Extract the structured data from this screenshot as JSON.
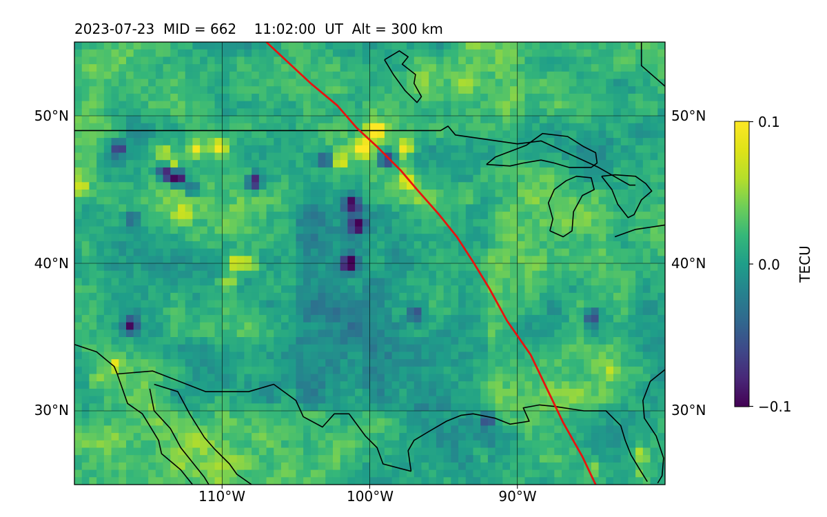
{
  "chart_data": {
    "type": "heatmap",
    "title": "2023-07-23  MID = 662    11:02:00  UT  Alt = 300 km",
    "lon_range": [
      -120,
      -80
    ],
    "lat_range": [
      25,
      55
    ],
    "x_ticks": [
      {
        "value": -110,
        "label": "110°W"
      },
      {
        "value": -100,
        "label": "100°W"
      },
      {
        "value": -90,
        "label": "90°W"
      }
    ],
    "y_ticks": [
      {
        "value": 50,
        "label": "50°N"
      },
      {
        "value": 40,
        "label": "40°N"
      },
      {
        "value": 30,
        "label": "30°N"
      }
    ],
    "grid": true,
    "colormap": "viridis",
    "colorbar": {
      "label": "TECU",
      "range": [
        -0.1,
        0.1
      ],
      "ticks": [
        {
          "value": 0.1,
          "label": "0.1"
        },
        {
          "value": 0.0,
          "label": "0.0"
        },
        {
          "value": -0.1,
          "label": "−0.1"
        }
      ]
    },
    "field": {
      "grid_resolution_deg": 0.5,
      "background_value": 0.015,
      "hotspots": [
        {
          "lon": -100.4,
          "lat": 47.8,
          "value": 0.11
        },
        {
          "lon": -99.6,
          "lat": 49.0,
          "value": 0.11
        },
        {
          "lon": -97.6,
          "lat": 47.8,
          "value": 0.11
        },
        {
          "lon": -97.4,
          "lat": 45.6,
          "value": 0.09
        },
        {
          "lon": -111.8,
          "lat": 47.8,
          "value": 0.09
        },
        {
          "lon": -110.2,
          "lat": 47.8,
          "value": 0.1
        },
        {
          "lon": -113.4,
          "lat": 46.6,
          "value": 0.08
        },
        {
          "lon": -109.2,
          "lat": 40.0,
          "value": 0.1
        },
        {
          "lon": -108.2,
          "lat": 40.0,
          "value": 0.09
        },
        {
          "lon": -109.6,
          "lat": 38.8,
          "value": 0.07
        },
        {
          "lon": -102.0,
          "lat": 47.0,
          "value": 0.08
        },
        {
          "lon": -119.6,
          "lat": 45.2,
          "value": 0.07
        },
        {
          "lon": -117.2,
          "lat": 33.2,
          "value": 0.07
        },
        {
          "lon": -118.6,
          "lat": 32.2,
          "value": 0.06
        },
        {
          "lon": -112.6,
          "lat": 43.4,
          "value": 0.06
        },
        {
          "lon": -114.0,
          "lat": 47.6,
          "value": 0.06
        },
        {
          "lon": -84.8,
          "lat": 26.2,
          "value": 0.07
        },
        {
          "lon": -83.6,
          "lat": 32.8,
          "value": 0.05
        },
        {
          "lon": -81.6,
          "lat": 25.6,
          "value": 0.06
        },
        {
          "lon": -81.6,
          "lat": 27.0,
          "value": 0.07
        },
        {
          "lon": -92.4,
          "lat": 27.0,
          "value": 0.05
        }
      ],
      "coldspots": [
        {
          "lon": -113.8,
          "lat": 46.2,
          "value": -0.1
        },
        {
          "lon": -113.0,
          "lat": 45.8,
          "value": -0.1
        },
        {
          "lon": -107.8,
          "lat": 45.5,
          "value": -0.1
        },
        {
          "lon": -101.2,
          "lat": 44.0,
          "value": -0.09
        },
        {
          "lon": -100.8,
          "lat": 42.6,
          "value": -0.1
        },
        {
          "lon": -101.4,
          "lat": 40.0,
          "value": -0.09
        },
        {
          "lon": -116.2,
          "lat": 35.8,
          "value": -0.1
        },
        {
          "lon": -98.9,
          "lat": 47.0,
          "value": -0.08
        },
        {
          "lon": -103.0,
          "lat": 47.0,
          "value": -0.07
        },
        {
          "lon": -117.0,
          "lat": 47.8,
          "value": -0.06
        },
        {
          "lon": -112.0,
          "lat": 45.0,
          "value": -0.06
        },
        {
          "lon": -116.0,
          "lat": 43.0,
          "value": -0.05
        },
        {
          "lon": -96.8,
          "lat": 36.6,
          "value": -0.06
        },
        {
          "lon": -92.0,
          "lat": 29.4,
          "value": -0.06
        },
        {
          "lon": -85.0,
          "lat": 36.4,
          "value": -0.05
        }
      ]
    },
    "track": {
      "color": "#e8130f",
      "points": [
        [
          -107.0,
          55.0
        ],
        [
          -105.5,
          53.6
        ],
        [
          -104.0,
          52.2
        ],
        [
          -102.2,
          50.7
        ],
        [
          -100.9,
          49.2
        ],
        [
          -99.5,
          47.9
        ],
        [
          -97.9,
          46.3
        ],
        [
          -96.8,
          45.0
        ],
        [
          -95.3,
          43.3
        ],
        [
          -94.1,
          41.8
        ],
        [
          -93.0,
          40.1
        ],
        [
          -91.9,
          38.3
        ],
        [
          -90.7,
          36.1
        ],
        [
          -89.1,
          33.8
        ],
        [
          -88.0,
          31.5
        ],
        [
          -86.9,
          29.2
        ],
        [
          -85.6,
          26.9
        ],
        [
          -84.7,
          25.0
        ]
      ]
    },
    "coastlines": [
      {
        "name": "us-canada-border",
        "points": [
          [
            -120.0,
            49.0
          ],
          [
            -95.2,
            49.0
          ],
          [
            -94.7,
            49.3
          ],
          [
            -94.2,
            48.7
          ],
          [
            -90.0,
            48.1
          ],
          [
            -88.4,
            48.3
          ],
          [
            -84.5,
            46.5
          ],
          [
            -82.4,
            45.3
          ],
          [
            -82.0,
            45.3
          ]
        ]
      },
      {
        "name": "lake-superior",
        "points": [
          [
            -92.1,
            46.7
          ],
          [
            -90.5,
            46.6
          ],
          [
            -89.6,
            46.8
          ],
          [
            -88.4,
            47.0
          ],
          [
            -87.5,
            46.8
          ],
          [
            -86.5,
            46.5
          ],
          [
            -85.0,
            46.5
          ],
          [
            -84.6,
            46.8
          ],
          [
            -84.7,
            47.5
          ],
          [
            -85.5,
            47.9
          ],
          [
            -86.6,
            48.6
          ],
          [
            -88.3,
            48.8
          ],
          [
            -89.4,
            48.0
          ],
          [
            -91.5,
            47.2
          ],
          [
            -92.1,
            46.7
          ]
        ]
      },
      {
        "name": "lake-michigan",
        "points": [
          [
            -87.8,
            42.2
          ],
          [
            -87.6,
            43.0
          ],
          [
            -87.9,
            44.1
          ],
          [
            -87.5,
            45.0
          ],
          [
            -86.7,
            45.6
          ],
          [
            -86.0,
            45.9
          ],
          [
            -85.0,
            45.8
          ],
          [
            -84.8,
            45.0
          ],
          [
            -85.6,
            44.6
          ],
          [
            -86.2,
            43.5
          ],
          [
            -86.3,
            42.2
          ],
          [
            -86.9,
            41.8
          ],
          [
            -87.8,
            42.2
          ]
        ]
      },
      {
        "name": "lake-huron",
        "points": [
          [
            -84.3,
            45.9
          ],
          [
            -83.4,
            46.0
          ],
          [
            -82.0,
            45.9
          ],
          [
            -81.3,
            45.4
          ],
          [
            -80.9,
            44.9
          ],
          [
            -81.6,
            44.3
          ],
          [
            -82.1,
            43.3
          ],
          [
            -82.5,
            43.1
          ],
          [
            -83.2,
            44.0
          ],
          [
            -83.6,
            45.0
          ],
          [
            -84.3,
            45.9
          ]
        ]
      },
      {
        "name": "lake-erie-ontario",
        "points": [
          [
            -83.4,
            41.8
          ],
          [
            -82.0,
            42.3
          ],
          [
            -80.0,
            42.6
          ]
        ]
      },
      {
        "name": "hudson-bay-shore",
        "points": [
          [
            -81.6,
            55.0
          ],
          [
            -81.6,
            53.4
          ],
          [
            -80.0,
            52.0
          ]
        ]
      },
      {
        "name": "lake-winnipeg",
        "points": [
          [
            -99.0,
            53.8
          ],
          [
            -98.0,
            54.4
          ],
          [
            -97.4,
            54.0
          ],
          [
            -97.8,
            53.5
          ],
          [
            -96.9,
            52.8
          ],
          [
            -97.0,
            52.2
          ],
          [
            -96.5,
            51.3
          ],
          [
            -96.8,
            50.9
          ],
          [
            -97.6,
            51.7
          ],
          [
            -98.4,
            52.8
          ],
          [
            -99.0,
            53.8
          ]
        ]
      },
      {
        "name": "gulf-coast",
        "points": [
          [
            -97.2,
            25.9
          ],
          [
            -97.4,
            27.3
          ],
          [
            -97.0,
            28.0
          ],
          [
            -96.0,
            28.6
          ],
          [
            -94.8,
            29.3
          ],
          [
            -93.8,
            29.7
          ],
          [
            -93.0,
            29.8
          ],
          [
            -91.5,
            29.5
          ],
          [
            -90.5,
            29.1
          ],
          [
            -89.2,
            29.3
          ],
          [
            -89.6,
            30.2
          ],
          [
            -88.5,
            30.4
          ],
          [
            -87.5,
            30.3
          ],
          [
            -85.5,
            30.0
          ],
          [
            -84.0,
            30.0
          ],
          [
            -83.0,
            29.0
          ],
          [
            -82.7,
            28.0
          ],
          [
            -82.3,
            27.0
          ],
          [
            -81.7,
            26.0
          ],
          [
            -81.2,
            25.2
          ]
        ]
      },
      {
        "name": "mexico-border",
        "points": [
          [
            -117.1,
            32.5
          ],
          [
            -114.7,
            32.7
          ],
          [
            -111.1,
            31.3
          ],
          [
            -108.2,
            31.3
          ],
          [
            -106.5,
            31.8
          ],
          [
            -105.0,
            30.7
          ],
          [
            -104.5,
            29.6
          ],
          [
            -103.2,
            28.9
          ],
          [
            -102.4,
            29.8
          ],
          [
            -101.4,
            29.8
          ],
          [
            -100.3,
            28.3
          ],
          [
            -99.5,
            27.5
          ],
          [
            -99.1,
            26.4
          ],
          [
            -97.2,
            25.9
          ]
        ]
      },
      {
        "name": "california-coast",
        "points": [
          [
            -120.0,
            34.5
          ],
          [
            -118.5,
            34.0
          ],
          [
            -117.3,
            33.0
          ],
          [
            -117.1,
            32.5
          ]
        ]
      },
      {
        "name": "baja-west-coast",
        "points": [
          [
            -117.1,
            32.5
          ],
          [
            -116.4,
            30.5
          ],
          [
            -115.4,
            29.8
          ],
          [
            -114.3,
            28.0
          ],
          [
            -114.1,
            27.1
          ],
          [
            -112.8,
            26.0
          ],
          [
            -112.0,
            25.0
          ]
        ]
      },
      {
        "name": "gulf-of-california-west",
        "points": [
          [
            -114.9,
            31.5
          ],
          [
            -114.6,
            30.0
          ],
          [
            -113.5,
            28.8
          ],
          [
            -112.8,
            27.5
          ],
          [
            -112.0,
            26.5
          ],
          [
            -111.2,
            25.5
          ],
          [
            -110.9,
            25.0
          ]
        ]
      },
      {
        "name": "sonora-coast",
        "points": [
          [
            -114.6,
            31.8
          ],
          [
            -113.0,
            31.3
          ],
          [
            -112.2,
            29.8
          ],
          [
            -111.2,
            28.2
          ],
          [
            -110.5,
            27.4
          ],
          [
            -109.5,
            26.4
          ],
          [
            -109.0,
            25.7
          ],
          [
            -108.0,
            25.0
          ]
        ]
      },
      {
        "name": "atlantic-coast",
        "points": [
          [
            -80.0,
            32.8
          ],
          [
            -81.0,
            32.0
          ],
          [
            -81.5,
            30.7
          ],
          [
            -81.4,
            29.5
          ],
          [
            -80.6,
            28.3
          ],
          [
            -80.1,
            26.8
          ],
          [
            -80.2,
            25.6
          ],
          [
            -80.5,
            25.1
          ]
        ]
      }
    ]
  }
}
